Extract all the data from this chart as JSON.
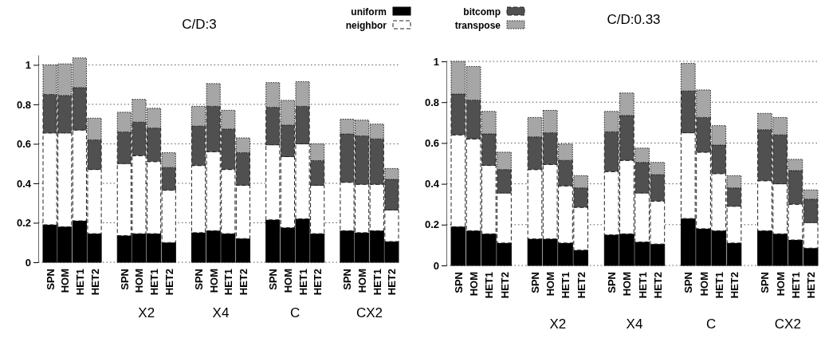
{
  "chart_data": [
    {
      "type": "bar",
      "title": "C/D:3",
      "stacked": true,
      "grid": "y",
      "legend": "top right",
      "ylim": [
        0,
        1.05
      ],
      "yticks": [
        0,
        0.2,
        0.4,
        0.6,
        0.8,
        1
      ],
      "categories": [
        "SPN",
        "HOM",
        "HET1",
        "HET2",
        null,
        "SPN",
        "HOM",
        "HET1",
        "HET2",
        null,
        "SPN",
        "HOM",
        "HET1",
        "HET2",
        null,
        "SPN",
        "HOM",
        "HET1",
        "HET2",
        null,
        "SPN",
        "HOM",
        "HET1",
        "HET2"
      ],
      "annotations": [
        "X2",
        "X4",
        "C",
        "CX2"
      ],
      "series": [
        {
          "name": "uniform",
          "color": "#000000",
          "line_style": "solid",
          "values": [
            0.19,
            0.18,
            0.21,
            0.145,
            null,
            0.135,
            0.145,
            0.145,
            0.1,
            null,
            0.15,
            0.16,
            0.145,
            0.12,
            null,
            0.215,
            0.175,
            0.22,
            0.145,
            null,
            0.16,
            0.15,
            0.16,
            0.105
          ]
        },
        {
          "name": "neighbor",
          "color": "#ffffff",
          "line_style": "dashed",
          "values": [
            0.465,
            0.475,
            0.46,
            0.325,
            null,
            0.365,
            0.395,
            0.365,
            0.265,
            null,
            0.34,
            0.4,
            0.325,
            0.27,
            null,
            0.38,
            0.36,
            0.38,
            0.245,
            null,
            0.245,
            0.245,
            0.235,
            0.16
          ]
        },
        {
          "name": "bitcomp",
          "color": "#505050",
          "line_style": "dashed",
          "values": [
            0.195,
            0.19,
            0.215,
            0.15,
            null,
            0.16,
            0.17,
            0.17,
            0.115,
            null,
            0.2,
            0.23,
            0.205,
            0.165,
            null,
            0.19,
            0.16,
            0.19,
            0.125,
            null,
            0.245,
            0.245,
            0.23,
            0.155
          ]
        },
        {
          "name": "transpose",
          "color": "#a6a6a6",
          "line_style": "dotted",
          "values": [
            0.15,
            0.16,
            0.15,
            0.11,
            null,
            0.1,
            0.115,
            0.1,
            0.075,
            null,
            0.1,
            0.115,
            0.095,
            0.075,
            null,
            0.125,
            0.125,
            0.125,
            0.085,
            null,
            0.075,
            0.08,
            0.075,
            0.055
          ]
        }
      ]
    },
    {
      "type": "bar",
      "title": "C/D:0.33",
      "stacked": true,
      "grid": "y",
      "ylim": [
        0,
        1.0
      ],
      "yticks": [
        0,
        0.2,
        0.4,
        0.6,
        0.8,
        1
      ],
      "categories": [
        "SPN",
        "HOM",
        "HET1",
        "HET2",
        null,
        "SPN",
        "HOM",
        "HET1",
        "HET2",
        null,
        "SPN",
        "HOM",
        "HET1",
        "HET2",
        null,
        "SPN",
        "HOM",
        "HET1",
        "HET2",
        null,
        "SPN",
        "HOM",
        "HET1",
        "HET2"
      ],
      "annotations": [
        "X2",
        "X4",
        "C",
        "CX2"
      ],
      "series": [
        {
          "color": "#000000",
          "line_style": "solid",
          "values": [
            0.19,
            0.17,
            0.155,
            0.11,
            null,
            0.13,
            0.13,
            0.11,
            0.075,
            null,
            0.15,
            0.155,
            0.115,
            0.105,
            null,
            0.23,
            0.18,
            0.17,
            0.11,
            null,
            0.17,
            0.155,
            0.125,
            0.085
          ]
        },
        {
          "color": "#ffffff",
          "line_style": "dashed",
          "values": [
            0.45,
            0.45,
            0.335,
            0.245,
            null,
            0.34,
            0.365,
            0.28,
            0.21,
            null,
            0.31,
            0.36,
            0.24,
            0.21,
            null,
            0.42,
            0.375,
            0.28,
            0.18,
            null,
            0.245,
            0.245,
            0.175,
            0.125
          ]
        },
        {
          "color": "#505050",
          "line_style": "dashed",
          "values": [
            0.2,
            0.19,
            0.155,
            0.115,
            null,
            0.16,
            0.155,
            0.125,
            0.095,
            null,
            0.195,
            0.22,
            0.15,
            0.13,
            null,
            0.205,
            0.17,
            0.14,
            0.09,
            null,
            0.25,
            0.24,
            0.165,
            0.115
          ]
        },
        {
          "color": "#a6a6a6",
          "line_style": "dotted",
          "values": [
            0.16,
            0.165,
            0.11,
            0.085,
            null,
            0.095,
            0.11,
            0.08,
            0.06,
            null,
            0.1,
            0.11,
            0.07,
            0.06,
            null,
            0.135,
            0.135,
            0.095,
            0.06,
            null,
            0.08,
            0.085,
            0.055,
            0.045
          ]
        }
      ]
    }
  ]
}
